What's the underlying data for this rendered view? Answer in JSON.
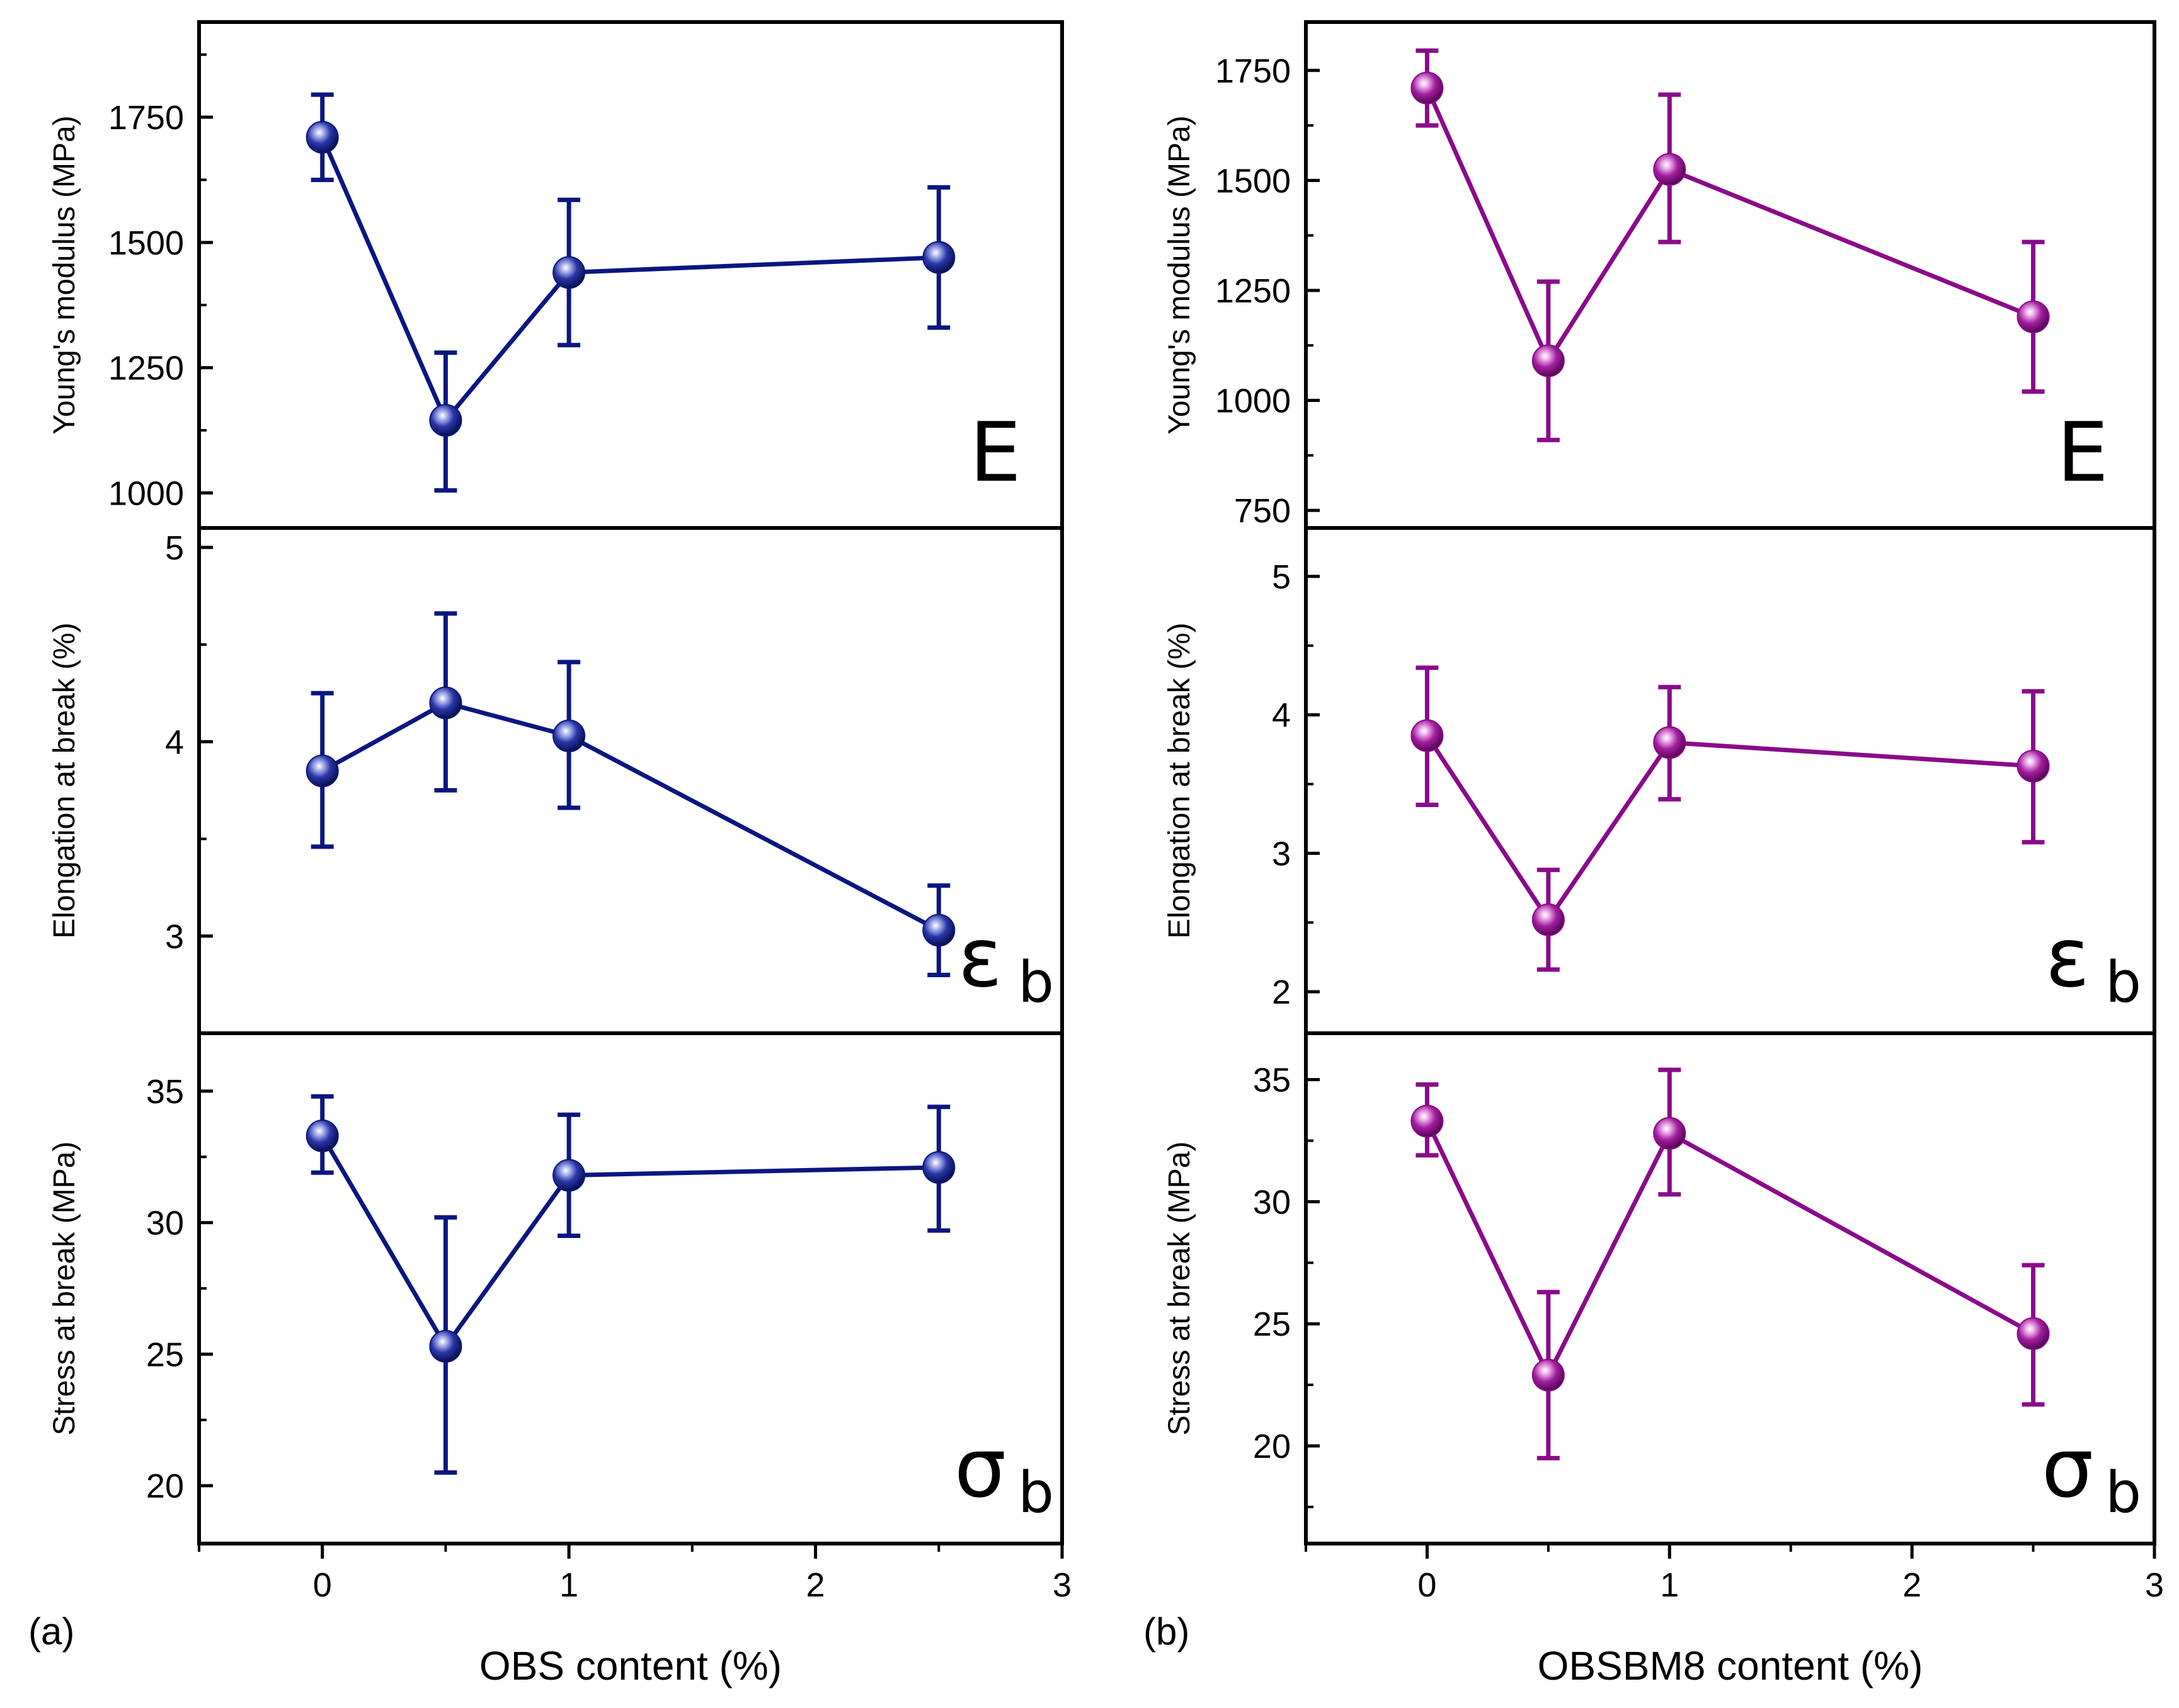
{
  "chart_data": [
    {
      "id": "a",
      "type": "line",
      "panel_label": "(a)",
      "xlabel": "OBS content (%)",
      "xlim": [
        -0.5,
        3
      ],
      "xticks": [
        0,
        1,
        2,
        3
      ],
      "x": [
        0,
        0.5,
        1,
        2.5
      ],
      "color": "#0b1680",
      "subplots": [
        {
          "name": "youngs-modulus",
          "ylabel": "Young's modulus (MPa)",
          "symbol": "E",
          "symbol_sub": "",
          "ylim": [
            930,
            1940
          ],
          "yticks": [
            1000,
            1250,
            1500,
            1750
          ],
          "values": [
            1710,
            1145,
            1440,
            1470
          ],
          "err_low": [
            1625,
            1005,
            1295,
            1330
          ],
          "err_high": [
            1795,
            1280,
            1585,
            1610
          ]
        },
        {
          "name": "elongation-at-break",
          "ylabel": "Elongation at break (%)",
          "symbol": "ε",
          "symbol_sub": "b",
          "ylim": [
            2.5,
            5.1
          ],
          "yticks": [
            3,
            4,
            5
          ],
          "values": [
            3.85,
            4.2,
            4.03,
            3.03
          ],
          "err_low": [
            3.46,
            3.75,
            3.66,
            2.8
          ],
          "err_high": [
            4.25,
            4.66,
            4.41,
            3.26
          ]
        },
        {
          "name": "stress-at-break",
          "ylabel": "Stress at break (MPa)",
          "symbol": "σ",
          "symbol_sub": "b",
          "ylim": [
            17.8,
            37.2
          ],
          "yticks": [
            20,
            25,
            30,
            35
          ],
          "values": [
            33.3,
            25.3,
            31.8,
            32.1
          ],
          "err_low": [
            31.9,
            20.5,
            29.5,
            29.7
          ],
          "err_high": [
            34.8,
            30.2,
            34.1,
            34.4
          ]
        }
      ]
    },
    {
      "id": "b",
      "type": "line",
      "panel_label": "(b)",
      "xlabel": "OBSBM8 content (%)",
      "xlim": [
        -0.5,
        3
      ],
      "xticks": [
        0,
        1,
        2,
        3
      ],
      "x": [
        0,
        0.5,
        1,
        2.5
      ],
      "color": "#8a0a8a",
      "subplots": [
        {
          "name": "youngs-modulus",
          "ylabel": "Young's modulus (MPa)",
          "symbol": "E",
          "symbol_sub": "",
          "ylim": [
            710,
            1860
          ],
          "yticks": [
            750,
            1000,
            1250,
            1500,
            1750
          ],
          "values": [
            1710,
            1090,
            1525,
            1190
          ],
          "err_low": [
            1625,
            910,
            1360,
            1020
          ],
          "err_high": [
            1795,
            1270,
            1695,
            1360
          ]
        },
        {
          "name": "elongation-at-break",
          "ylabel": "Elongation at break (%)",
          "symbol": "ε",
          "symbol_sub": "b",
          "ylim": [
            1.7,
            5.35
          ],
          "yticks": [
            2,
            3,
            4,
            5
          ],
          "values": [
            3.85,
            2.52,
            3.8,
            3.63
          ],
          "err_low": [
            3.35,
            2.16,
            3.39,
            3.08
          ],
          "err_high": [
            4.34,
            2.88,
            4.2,
            4.17
          ]
        },
        {
          "name": "stress-at-break",
          "ylabel": "Stress at break (MPa)",
          "symbol": "σ",
          "symbol_sub": "b",
          "ylim": [
            16,
            36.9
          ],
          "yticks": [
            20,
            25,
            30,
            35
          ],
          "values": [
            33.3,
            22.9,
            32.8,
            24.6
          ],
          "err_low": [
            31.9,
            19.5,
            30.3,
            21.7
          ],
          "err_high": [
            34.8,
            26.3,
            35.4,
            27.4
          ]
        }
      ]
    }
  ]
}
